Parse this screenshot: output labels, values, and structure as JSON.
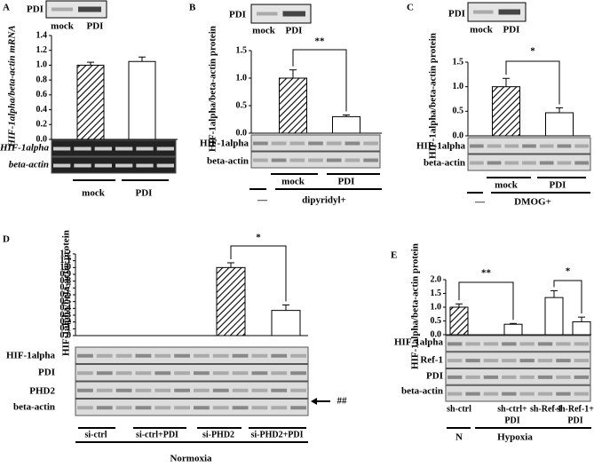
{
  "chart_data": [
    {
      "type": "bar",
      "panel": "A",
      "y_label": "HIF-1alpha/beta-actin mRNA",
      "inset": {
        "label": "PDI",
        "lanes": [
          "mock",
          "PDI"
        ]
      },
      "categories": [
        "mock",
        "PDI"
      ],
      "values": [
        1.0,
        1.05
      ],
      "errors": [
        0.04,
        0.06
      ],
      "hatched": [
        true,
        false
      ],
      "ylim": [
        0,
        1.4
      ],
      "yticks": [
        {
          "value": 0,
          "label": "0.0"
        },
        0.2,
        0.4,
        0.6,
        0.8,
        {
          "value": 1,
          "label": "1.0"
        },
        1.2,
        1.4
      ],
      "blot_rows": [
        "HIF-1alpha",
        "beta-actin"
      ]
    },
    {
      "type": "bar",
      "panel": "B",
      "y_label": "HIF-1alpha/beta-actin protein",
      "inset": {
        "label": "PDI",
        "lanes": [
          "mock",
          "PDI"
        ]
      },
      "categories": [
        "mock",
        "PDI"
      ],
      "values": [
        1.0,
        0.3
      ],
      "errors": [
        0.15,
        0.03
      ],
      "hatched": [
        true,
        false
      ],
      "ylim": [
        0,
        1.5
      ],
      "yticks": [
        {
          "value": 0,
          "label": "0.0"
        },
        0.5,
        {
          "value": 1,
          "label": "1.0"
        },
        1.5
      ],
      "significance": [
        "**"
      ],
      "blot_rows": [
        "HIF-1alpha",
        "beta-actin"
      ],
      "treatment": [
        "—",
        "dipyridyl+"
      ]
    },
    {
      "type": "bar",
      "panel": "C",
      "y_label": "HIF-1alpha/beta-actin protein",
      "inset": {
        "label": "PDI",
        "lanes": [
          "mock",
          "PDI"
        ]
      },
      "categories": [
        "mock",
        "PDI"
      ],
      "values": [
        1.0,
        0.47
      ],
      "errors": [
        0.17,
        0.1
      ],
      "hatched": [
        true,
        false
      ],
      "ylim": [
        0,
        1.5
      ],
      "yticks": [
        {
          "value": 0,
          "label": "0.0"
        },
        0.5,
        {
          "value": 1,
          "label": "1.0"
        },
        1.5
      ],
      "significance": [
        "*"
      ],
      "blot_rows": [
        "HIF-1alpha",
        "beta-actin"
      ],
      "treatment": [
        "—",
        "DMOG+"
      ]
    },
    {
      "type": "bar",
      "panel": "D",
      "y_label": "HIF-1alpha/beta-actin protein",
      "categories": [
        "si-ctrl",
        "si-ctrl+PDI",
        "si-PHD2",
        "si-PHD2+PDI"
      ],
      "values": [
        null,
        null,
        1.0,
        0.37
      ],
      "errors": [
        null,
        null,
        0.07,
        0.08
      ],
      "hatched": [
        false,
        false,
        true,
        false
      ],
      "ylim": [
        0,
        1.2
      ],
      "yticks": [
        {
          "value": 0,
          "label": "0.0"
        },
        0.1,
        0.2,
        0.3,
        0.4,
        0.5,
        0.6,
        0.7,
        0.8,
        0.9,
        {
          "value": 1,
          "label": "1.0"
        },
        1.1,
        1.2
      ],
      "significance": [
        "*"
      ],
      "blot_rows": [
        "HIF-1alpha",
        "PDI",
        "PHD2",
        "beta-actin"
      ],
      "marker": "##",
      "condition": "Normoxia"
    },
    {
      "type": "bar",
      "panel": "E",
      "y_label": "HIF-1alpha/beta-actin protein",
      "categories": [
        [
          "sh-ctrl"
        ],
        [
          "sh-ctrl+",
          "PDI"
        ],
        [
          "sh-Ref-1"
        ],
        [
          "sh-Ref-1+",
          "PDI"
        ]
      ],
      "values": [
        1.0,
        0.38,
        1.35,
        0.47
      ],
      "errors": [
        0.12,
        0.03,
        0.25,
        0.17
      ],
      "hatched": [
        true,
        false,
        false,
        false
      ],
      "ylim": [
        0,
        2.0
      ],
      "yticks": [
        {
          "value": 0,
          "label": "0.0"
        },
        0.5,
        {
          "value": 1,
          "label": "1.0"
        },
        1.5,
        {
          "value": 2,
          "label": "2.0"
        }
      ],
      "significance": [
        "**",
        "*"
      ],
      "blot_rows": [
        "HIF-1alpha",
        "Ref-1",
        "PDI",
        "beta-actin"
      ],
      "condition": [
        "N",
        "Hypoxia"
      ]
    }
  ]
}
